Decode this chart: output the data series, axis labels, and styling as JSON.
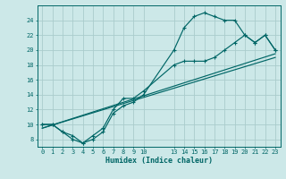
{
  "xlabel": "Humidex (Indice chaleur)",
  "bg_color": "#cce8e8",
  "grid_color": "#aacccc",
  "line_color": "#006666",
  "xlim": [
    -0.5,
    23.5
  ],
  "ylim": [
    7.0,
    26.0
  ],
  "xticks": [
    0,
    1,
    2,
    3,
    4,
    5,
    6,
    7,
    8,
    9,
    10,
    13,
    14,
    15,
    16,
    17,
    18,
    19,
    20,
    21,
    22,
    23
  ],
  "yticks": [
    8,
    10,
    12,
    14,
    16,
    18,
    20,
    22,
    24
  ],
  "curve_upper_x": [
    0,
    1,
    2,
    3,
    4,
    5,
    6,
    7,
    8,
    9,
    10,
    13,
    14,
    15,
    16,
    17,
    18,
    19,
    20,
    21,
    22,
    23
  ],
  "curve_upper_y": [
    10,
    10,
    9,
    8.5,
    7.5,
    8,
    9,
    11.5,
    12.5,
    13,
    14,
    20,
    23,
    24.5,
    25,
    24.5,
    24,
    24,
    22,
    21,
    22,
    20
  ],
  "curve_lower_x": [
    0,
    1,
    2,
    3,
    4,
    5,
    6,
    7,
    8,
    9,
    10,
    13,
    14,
    15,
    16,
    17,
    18,
    19,
    20,
    21,
    22,
    23
  ],
  "curve_lower_y": [
    10,
    10,
    9,
    8,
    7.5,
    8.5,
    9.5,
    12,
    13.5,
    13.5,
    14.5,
    18,
    18.5,
    18.5,
    18.5,
    19,
    20,
    21,
    22,
    21,
    22,
    20
  ],
  "line_x": [
    0,
    23
  ],
  "line_y": [
    9.5,
    19.5
  ]
}
